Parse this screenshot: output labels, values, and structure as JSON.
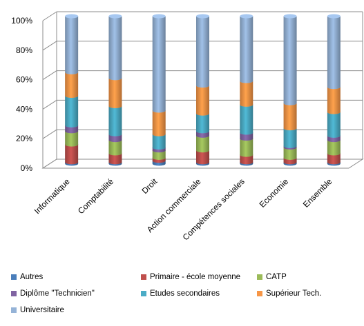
{
  "chart_data": {
    "type": "bar",
    "stacked": true,
    "three_d": true,
    "categories": [
      "Informatique",
      "Comptabilité",
      "Droit",
      "Action commerciale",
      "Compétences sociales",
      "Economie",
      "Ensemble"
    ],
    "series": [
      {
        "name": "Autres",
        "color": "#4a7ebb",
        "values": [
          1,
          1,
          2,
          1,
          1,
          1,
          1
        ]
      },
      {
        "name": "Primaire - école moyenne",
        "color": "#c0504d",
        "values": [
          12,
          6,
          2,
          8,
          5,
          3,
          6
        ]
      },
      {
        "name": "CATP",
        "color": "#9bbb59",
        "values": [
          9,
          9,
          5,
          10,
          11,
          7,
          9
        ]
      },
      {
        "name": "Diplôme \"Technicien\"",
        "color": "#8064a2",
        "values": [
          4,
          4,
          2,
          3,
          4,
          1,
          3
        ]
      },
      {
        "name": "Etudes secondaires",
        "color": "#4bacc6",
        "values": [
          20,
          19,
          9,
          12,
          19,
          12,
          16
        ]
      },
      {
        "name": "Supérieur Tech.",
        "color": "#f79646",
        "values": [
          16,
          19,
          16,
          19,
          16,
          17,
          17
        ]
      },
      {
        "name": "Universitaire",
        "color": "#95b3d7",
        "values": [
          38,
          42,
          64,
          47,
          44,
          59,
          48
        ]
      }
    ],
    "yticks": [
      "0%",
      "20%",
      "40%",
      "60%",
      "80%",
      "100%"
    ],
    "ylim": [
      0,
      100
    ],
    "legend_position": "bottom",
    "grid": true
  }
}
